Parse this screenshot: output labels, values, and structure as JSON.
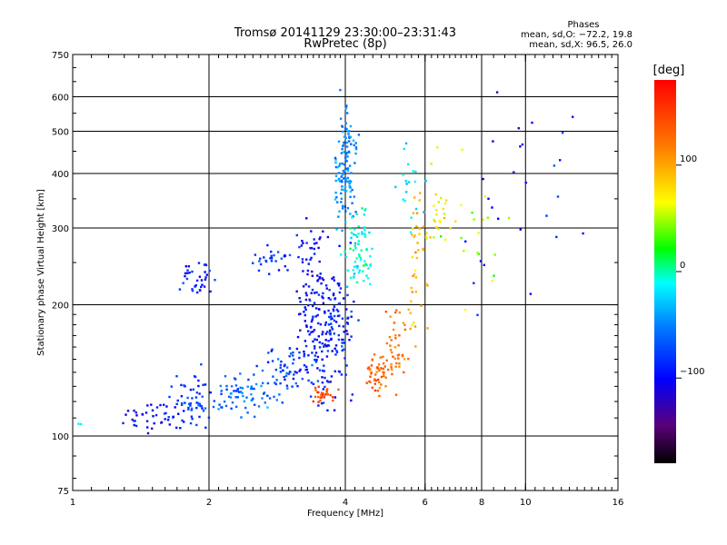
{
  "chart_data": {
    "type": "scatter",
    "title": "Tromsø 20141129 23:30:00–23:31:43",
    "subtitle": "RwPretec (8p)",
    "xlabel": "Frequency [MHz]",
    "ylabel": "Stationary phase Virtual Height [km]",
    "x_scale": "log2",
    "y_scale": "log",
    "xlim": [
      1,
      16
    ],
    "ylim": [
      75,
      750
    ],
    "x_ticks": [
      1,
      2,
      4,
      6,
      8,
      10,
      16
    ],
    "x_tick_labels": [
      "1",
      "2",
      "4",
      "6",
      "8",
      "10",
      "16"
    ],
    "x_grid": [
      2,
      4,
      6,
      8,
      10
    ],
    "y_ticks": [
      75,
      100,
      200,
      300,
      400,
      500,
      600,
      750
    ],
    "y_tick_labels": [
      "75",
      "100",
      "200",
      "300",
      "400",
      "500",
      "600",
      "750"
    ],
    "y_grid": [
      100,
      200,
      300,
      400,
      500,
      600
    ],
    "grid": true,
    "stats": {
      "header": "Phases",
      "line_o": "mean, sd,O: −72.2, 19.8",
      "line_x": "mean, sd,X:  96.5, 26.0"
    },
    "colorbar": {
      "unit": "[deg]",
      "min": -180,
      "max": 180,
      "ticks": [
        100,
        0,
        -100
      ],
      "tick_labels": [
        "100",
        "0",
        "−100"
      ]
    },
    "series": [
      {
        "clusters": [
          [
            1.0,
            105,
            0.06,
            0.02,
            -20,
            6
          ],
          [
            1.5,
            110,
            0.1,
            0.05,
            -100,
            40
          ],
          [
            1.85,
            120,
            0.07,
            0.08,
            -80,
            60
          ],
          [
            2.4,
            125,
            0.12,
            0.05,
            -60,
            70
          ],
          [
            3.0,
            140,
            0.12,
            0.08,
            -80,
            70
          ],
          [
            1.9,
            230,
            0.06,
            0.05,
            -90,
            35
          ],
          [
            2.8,
            250,
            0.09,
            0.04,
            -80,
            30
          ],
          [
            3.4,
            205,
            0.06,
            0.22,
            -100,
            110
          ],
          [
            3.8,
            180,
            0.07,
            0.22,
            -90,
            130
          ],
          [
            4.0,
            420,
            0.04,
            0.14,
            -50,
            120
          ],
          [
            4.3,
            270,
            0.05,
            0.12,
            -10,
            70
          ],
          [
            4.7,
            140,
            0.05,
            0.05,
            130,
            50
          ],
          [
            5.2,
            160,
            0.05,
            0.12,
            120,
            40
          ],
          [
            5.8,
            250,
            0.04,
            0.2,
            95,
            40
          ],
          [
            6.4,
            320,
            0.06,
            0.07,
            70,
            25
          ],
          [
            5.5,
            380,
            0.05,
            0.15,
            -20,
            20
          ],
          [
            3.6,
            125,
            0.05,
            0.02,
            140,
            30
          ],
          [
            9.0,
            350,
            0.15,
            0.35,
            -100,
            20
          ],
          [
            7.5,
            300,
            0.15,
            0.3,
            50,
            20
          ],
          [
            12.0,
            400,
            0.1,
            0.2,
            -80,
            8
          ]
        ]
      }
    ]
  }
}
